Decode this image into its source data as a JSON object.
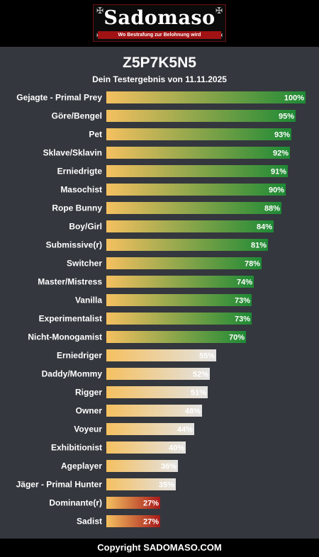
{
  "header": {
    "logo_text": "Sadomaso",
    "logo_tagline": "Wo Bestrafung zur Belohnung wird",
    "corner_glyph": "✠"
  },
  "title": "Z5P7K5N5",
  "subtitle": "Dein Testergebnis von 11.11.2025",
  "footer": {
    "text": "Copyright SADOMASO.COM"
  },
  "colors": {
    "background": "#34373d",
    "bar_start": "#f5c060",
    "high_end": "#1e8a35",
    "mid_end": "#e3e3e3",
    "low_end": "#a81a1a",
    "brand_red": "#a01214"
  },
  "chart_data": {
    "type": "bar",
    "orientation": "horizontal",
    "unit": "%",
    "xlim": [
      0,
      100
    ],
    "categories": [
      "Gejagte - Primal Prey",
      "Göre/Bengel",
      "Pet",
      "Sklave/Sklavin",
      "Erniedrigte",
      "Masochist",
      "Rope Bunny",
      "Boy/Girl",
      "Submissive(r)",
      "Switcher",
      "Master/Mistress",
      "Vanilla",
      "Experimentalist",
      "Nicht-Monogamist",
      "Erniedriger",
      "Daddy/Mommy",
      "Rigger",
      "Owner",
      "Voyeur",
      "Exhibitionist",
      "Ageplayer",
      "Jäger - Primal Hunter",
      "Dominante(r)",
      "Sadist"
    ],
    "values": [
      100,
      95,
      93,
      92,
      91,
      90,
      88,
      84,
      81,
      78,
      74,
      73,
      73,
      70,
      55,
      52,
      51,
      48,
      44,
      40,
      36,
      35,
      27,
      27
    ],
    "value_labels": [
      "100%",
      "95%",
      "93%",
      "92%",
      "91%",
      "90%",
      "88%",
      "84%",
      "81%",
      "78%",
      "74%",
      "73%",
      "73%",
      "70%",
      "55%",
      "52%",
      "51%",
      "48%",
      "44%",
      "40%",
      "36%",
      "35%",
      "27%",
      "27%"
    ],
    "color_groups": [
      "high",
      "high",
      "high",
      "high",
      "high",
      "high",
      "high",
      "high",
      "high",
      "high",
      "high",
      "high",
      "high",
      "high",
      "mid",
      "mid",
      "mid",
      "mid",
      "mid",
      "mid",
      "mid",
      "mid",
      "low",
      "low"
    ],
    "grid": false,
    "legend": "none"
  }
}
